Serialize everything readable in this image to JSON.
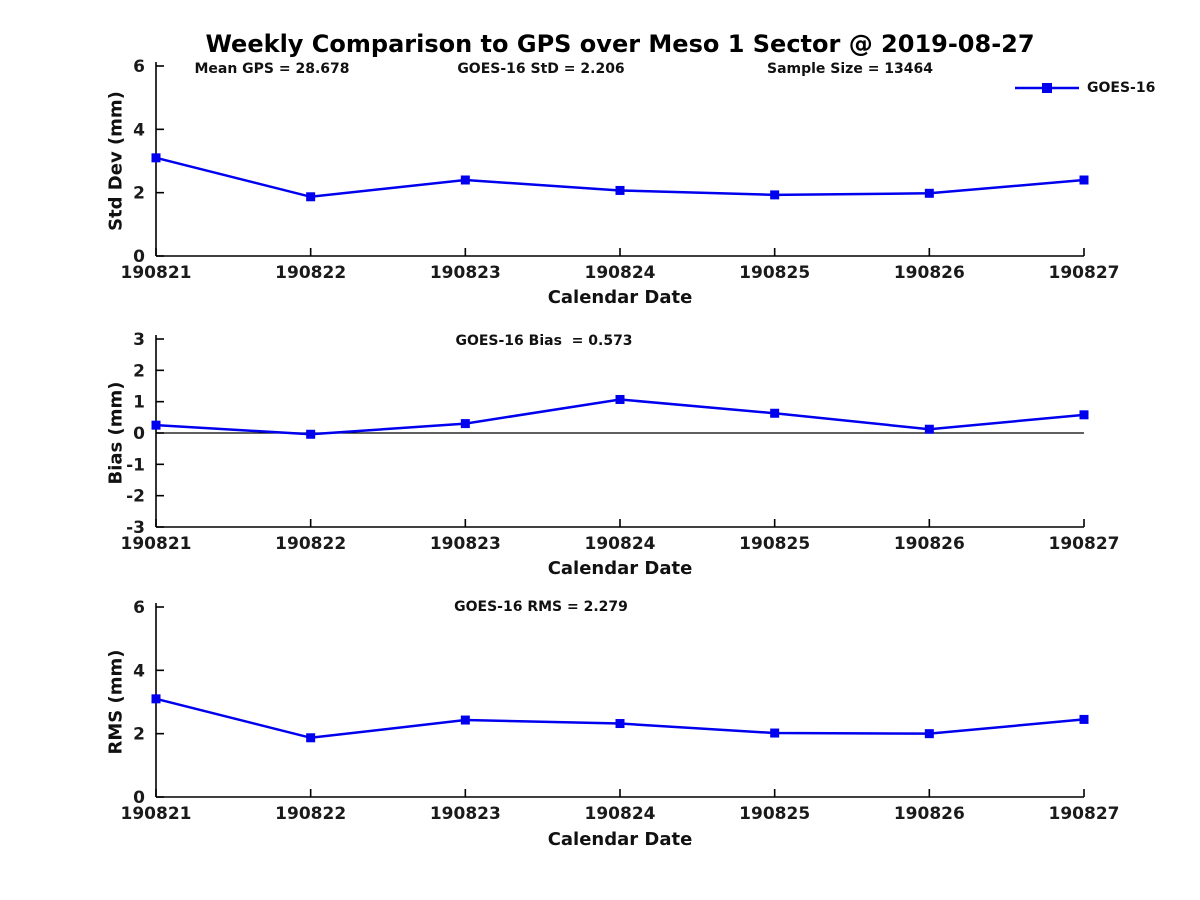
{
  "title": "Weekly Comparison to GPS over Meso 1 Sector @ 2019-08-27",
  "colors": {
    "series": "#0000EE",
    "axis": "#000000",
    "tick_text": "#1a1a1a",
    "zero_line": "#000000"
  },
  "legend": {
    "label": "GOES-16",
    "position": "top-right-outside-plot-1"
  },
  "chart_data": [
    {
      "type": "line",
      "categories": [
        "190821",
        "190822",
        "190823",
        "190824",
        "190825",
        "190826",
        "190827"
      ],
      "series": [
        {
          "name": "GOES-16",
          "values": [
            3.1,
            1.87,
            2.4,
            2.07,
            1.93,
            1.98,
            2.4
          ]
        }
      ],
      "xlabel": "Calendar Date",
      "ylabel": "Std Dev (mm)",
      "ylim": [
        0,
        6
      ],
      "yticks": [
        0,
        2,
        4,
        6
      ],
      "grid": false,
      "zero_line": false,
      "marker": "square",
      "annotations": [
        "Mean GPS = 28.678",
        "GOES-16 StD = 2.206",
        "Sample Size = 13464"
      ]
    },
    {
      "type": "line",
      "categories": [
        "190821",
        "190822",
        "190823",
        "190824",
        "190825",
        "190826",
        "190827"
      ],
      "series": [
        {
          "name": "GOES-16",
          "values": [
            0.25,
            -0.04,
            0.3,
            1.07,
            0.63,
            0.12,
            0.58
          ]
        }
      ],
      "xlabel": "Calendar Date",
      "ylabel": "Bias (mm)",
      "ylim": [
        -3,
        3
      ],
      "yticks": [
        -3,
        -2,
        -1,
        0,
        1,
        2,
        3
      ],
      "grid": false,
      "zero_line": true,
      "marker": "square",
      "annotations": [
        "GOES-16 Bias  = 0.573"
      ]
    },
    {
      "type": "line",
      "categories": [
        "190821",
        "190822",
        "190823",
        "190824",
        "190825",
        "190826",
        "190827"
      ],
      "series": [
        {
          "name": "GOES-16",
          "values": [
            3.1,
            1.87,
            2.43,
            2.32,
            2.02,
            2.0,
            2.45
          ]
        }
      ],
      "xlabel": "Calendar Date",
      "ylabel": "RMS (mm)",
      "ylim": [
        0,
        6
      ],
      "yticks": [
        0,
        2,
        4,
        6
      ],
      "grid": false,
      "zero_line": false,
      "marker": "square",
      "annotations": [
        "GOES-16 RMS = 2.279"
      ]
    }
  ]
}
